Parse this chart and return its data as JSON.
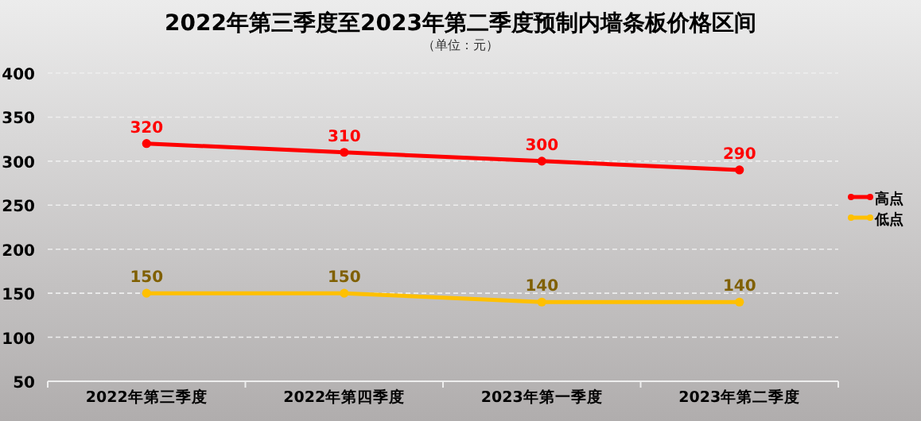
{
  "chart_data": {
    "type": "line",
    "title": "2022年第三季度至2023年第二季度预制内墙条板价格区间",
    "subtitle": "（单位：元）",
    "categories": [
      "2022年第三季度",
      "2022年第四季度",
      "2023年第一季度",
      "2023年第二季度"
    ],
    "series": [
      {
        "name": "高点",
        "color": "#ff0000",
        "values": [
          320,
          310,
          300,
          290
        ]
      },
      {
        "name": "低点",
        "color": "#ffc000",
        "values": [
          150,
          150,
          140,
          140
        ]
      }
    ],
    "ylim": [
      50,
      400
    ],
    "yticks": [
      50,
      100,
      150,
      200,
      250,
      300,
      350,
      400
    ],
    "grid": "y",
    "legend": "right",
    "marker": "circle",
    "line_style": "solid",
    "data_labels": true
  }
}
